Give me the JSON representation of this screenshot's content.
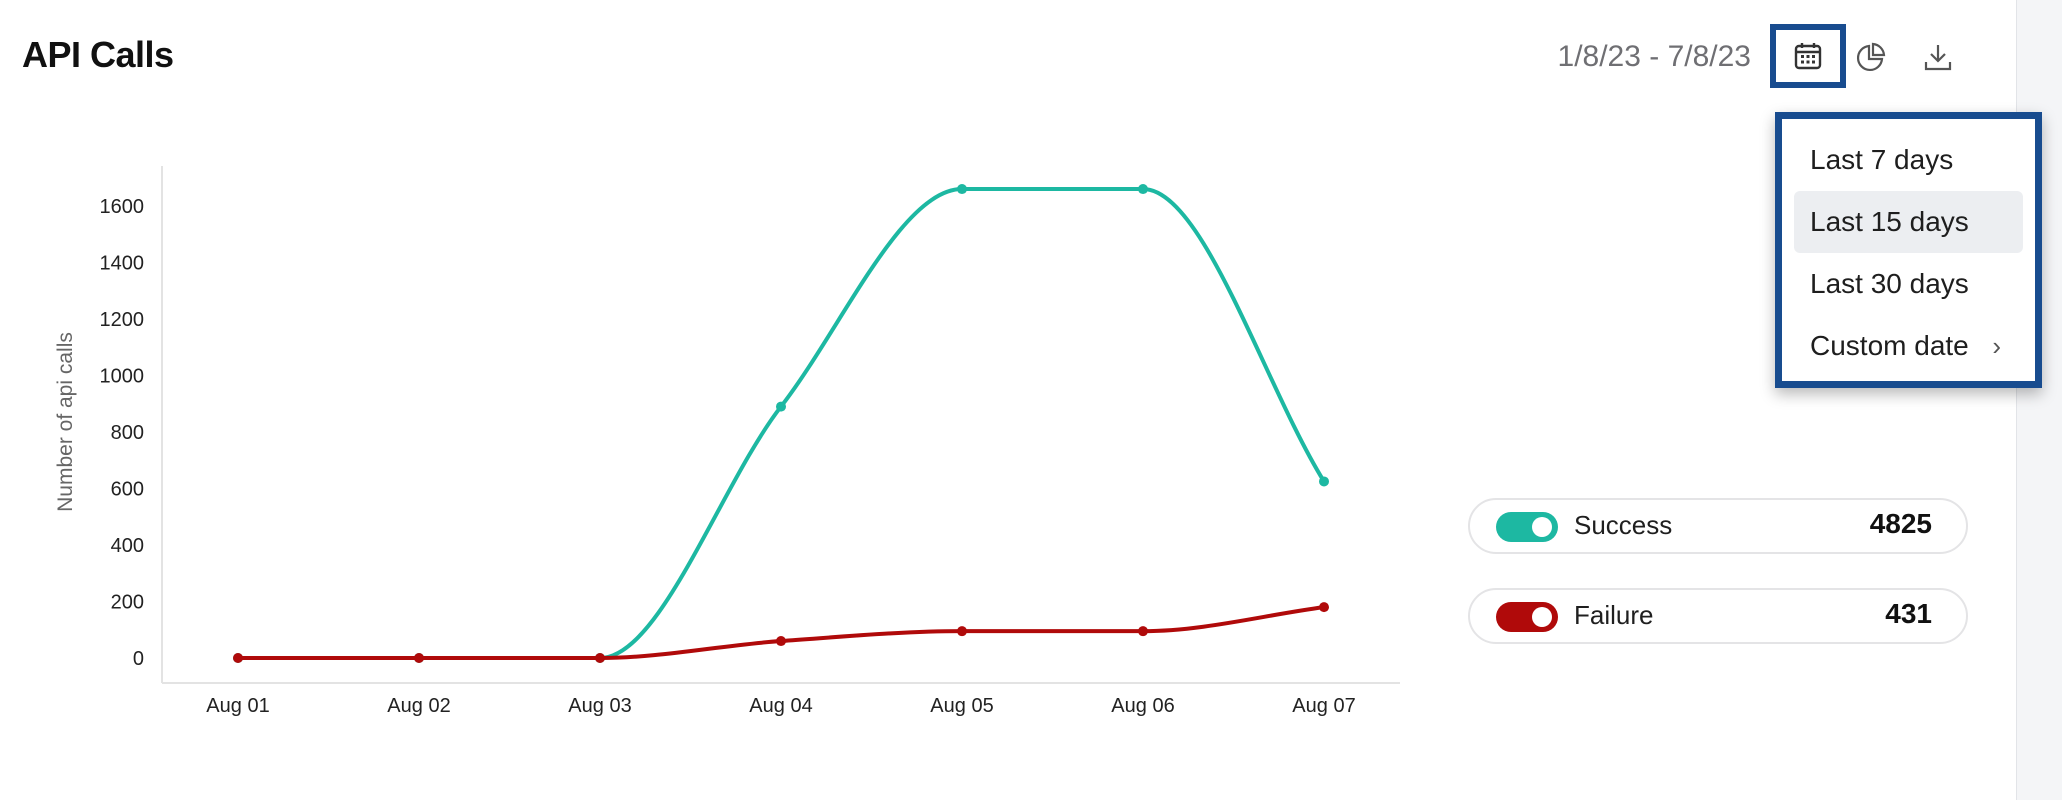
{
  "header": {
    "title": "API Calls",
    "date_range": "1/8/23 - 7/8/23",
    "tools": [
      {
        "icon": "calendar-icon",
        "selected": true
      },
      {
        "icon": "pie-chart-icon",
        "selected": false
      },
      {
        "icon": "download-icon",
        "selected": false
      }
    ]
  },
  "date_menu": {
    "items": [
      {
        "label": "Last 7 days",
        "active": false
      },
      {
        "label": "Last 15 days",
        "active": true
      },
      {
        "label": "Last 30 days",
        "active": false
      },
      {
        "label": "Custom date",
        "active": false,
        "has_submenu": true
      }
    ],
    "submenu_icon": "chevron-right-icon"
  },
  "legend": [
    {
      "name": "Success",
      "total": "4825",
      "color": "#1db8a2",
      "enabled": true
    },
    {
      "name": "Failure",
      "total": "431",
      "color": "#b00a0a",
      "enabled": true
    }
  ],
  "chart_data": {
    "type": "line",
    "title": "",
    "xlabel": "",
    "ylabel": "Number of api calls",
    "categories": [
      "Aug 01",
      "Aug 02",
      "Aug 03",
      "Aug 04",
      "Aug 05",
      "Aug 06",
      "Aug 07"
    ],
    "ylim": [
      0,
      1700
    ],
    "yticks": [
      0,
      200,
      400,
      600,
      800,
      1000,
      1200,
      1400,
      1600
    ],
    "grid": false,
    "legend_position": "right",
    "series": [
      {
        "name": "Success",
        "color": "#1db8a2",
        "values": [
          0,
          0,
          0,
          890,
          1660,
          1660,
          625
        ]
      },
      {
        "name": "Failure",
        "color": "#b00a0a",
        "values": [
          0,
          0,
          0,
          60,
          95,
          95,
          180
        ]
      }
    ]
  }
}
